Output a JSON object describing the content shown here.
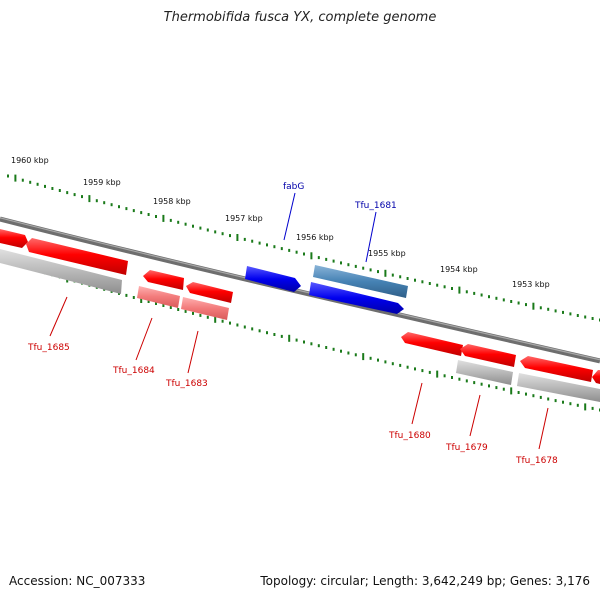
{
  "title": "Thermobifida fusca YX, complete genome",
  "accession": "Accession: NC_007333",
  "summary": "Topology: circular; Length: 3,642,249 bp; Genes: 3,176",
  "colors": {
    "gene_red": "#ff0000",
    "gene_red_light": "#ff8080",
    "gene_blue": "#0000ee",
    "gene_steelblue": "#4682b4",
    "pseudo_grey": "#b0b0b0",
    "backbone": "#7a7a7a",
    "tick_green": "#1a7a1a",
    "label_red": "#cc0000",
    "label_blue": "#0000aa"
  },
  "kbp_labels": [
    "1960 kbp",
    "1959 kbp",
    "1958 kbp",
    "1957 kbp",
    "1956 kbp",
    "1955 kbp",
    "1954 kbp",
    "1953 kbp"
  ],
  "gene_labels": [
    {
      "name": "fabG",
      "color": "blue"
    },
    {
      "name": "Tfu_1681",
      "color": "blue"
    },
    {
      "name": "Tfu_1685",
      "color": "red"
    },
    {
      "name": "Tfu_1684",
      "color": "red"
    },
    {
      "name": "Tfu_1683",
      "color": "red"
    },
    {
      "name": "Tfu_1680",
      "color": "red"
    },
    {
      "name": "Tfu_1679",
      "color": "red"
    },
    {
      "name": "Tfu_1678",
      "color": "red"
    }
  ]
}
